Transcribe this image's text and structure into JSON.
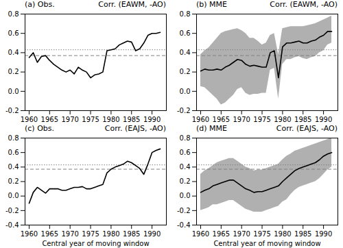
{
  "chart_data": [
    {
      "type": "line",
      "title": "(a) Obs.",
      "subtitle": "Corr. (EAWM, -AO)",
      "x": [
        1960,
        1961,
        1962,
        1963,
        1964,
        1965,
        1966,
        1967,
        1968,
        1969,
        1970,
        1971,
        1972,
        1973,
        1974,
        1975,
        1976,
        1977,
        1978,
        1979,
        1980,
        1981,
        1982,
        1983,
        1984,
        1985,
        1986,
        1987,
        1988,
        1989,
        1990,
        1991,
        1992
      ],
      "series": [
        {
          "type": "line",
          "color": "black",
          "values": [
            0.35,
            0.4,
            0.3,
            0.36,
            0.37,
            0.32,
            0.28,
            0.25,
            0.22,
            0.2,
            0.22,
            0.18,
            0.25,
            0.22,
            0.2,
            0.14,
            0.17,
            0.18,
            0.2,
            0.42,
            0.43,
            0.44,
            0.48,
            0.5,
            0.52,
            0.51,
            0.42,
            0.44,
            0.5,
            0.58,
            0.6,
            0.6,
            0.61
          ]
        }
      ],
      "hlines": [
        {
          "value": 0.37,
          "color": "gray",
          "line_style": "dashed"
        },
        {
          "value": 0.43,
          "color": "gray",
          "line_style": "dotted"
        }
      ],
      "xlim": [
        1959,
        1993.5
      ],
      "xticks": [
        1960,
        1965,
        1970,
        1975,
        1980,
        1985,
        1990
      ],
      "ylim": [
        -0.2,
        0.8
      ],
      "yticks": [
        -0.2,
        {
          "value": 0,
          "label": "0.0"
        },
        0.2,
        0.4,
        0.6,
        0.8
      ]
    },
    {
      "type": "line",
      "title": "(b) MME",
      "subtitle": "Corr. (EAWM, -AO)",
      "x": [
        1960,
        1961,
        1962,
        1963,
        1964,
        1965,
        1966,
        1967,
        1968,
        1969,
        1970,
        1971,
        1972,
        1973,
        1974,
        1975,
        1976,
        1977,
        1978,
        1979,
        1980,
        1981,
        1982,
        1983,
        1984,
        1985,
        1986,
        1987,
        1988,
        1989,
        1990,
        1991,
        1992
      ],
      "series": [
        {
          "type": "area",
          "color": "#b0b0b0",
          "lower": [
            0.05,
            0.04,
            0.0,
            -0.04,
            -0.08,
            -0.14,
            -0.12,
            -0.08,
            -0.04,
            0.02,
            0.04,
            -0.02,
            -0.04,
            -0.03,
            -0.03,
            -0.02,
            -0.02,
            0.22,
            0.24,
            -0.08,
            0.28,
            0.33,
            0.33,
            0.35,
            0.36,
            0.34,
            0.33,
            0.35,
            0.36,
            0.4,
            0.42,
            0.48,
            0.5
          ],
          "upper": [
            0.38,
            0.42,
            0.45,
            0.5,
            0.55,
            0.6,
            0.62,
            0.63,
            0.64,
            0.65,
            0.63,
            0.6,
            0.55,
            0.55,
            0.52,
            0.48,
            0.5,
            0.58,
            0.6,
            0.38,
            0.65,
            0.66,
            0.67,
            0.67,
            0.67,
            0.67,
            0.68,
            0.69,
            0.7,
            0.72,
            0.74,
            0.76,
            0.78
          ]
        },
        {
          "type": "line",
          "color": "black",
          "values": [
            0.21,
            0.23,
            0.22,
            0.22,
            0.23,
            0.22,
            0.25,
            0.27,
            0.3,
            0.33,
            0.32,
            0.28,
            0.26,
            0.27,
            0.26,
            0.25,
            0.25,
            0.4,
            0.42,
            0.14,
            0.46,
            0.5,
            0.5,
            0.51,
            0.52,
            0.5,
            0.5,
            0.52,
            0.53,
            0.56,
            0.58,
            0.62,
            0.62
          ]
        }
      ],
      "hlines": [
        {
          "value": 0.37,
          "color": "gray",
          "line_style": "dashed"
        },
        {
          "value": 0.43,
          "color": "gray",
          "line_style": "dotted"
        }
      ],
      "xlim": [
        1959,
        1993.5
      ],
      "xticks": [
        1960,
        1965,
        1970,
        1975,
        1980,
        1985,
        1990
      ],
      "ylim": [
        -0.2,
        0.8
      ],
      "yticks": [
        -0.2,
        {
          "value": 0,
          "label": "0.0"
        },
        0.2,
        0.4,
        0.6,
        0.8
      ]
    },
    {
      "type": "line",
      "title": "(c) Obs.",
      "subtitle": "Corr. (EAJS, -AO)",
      "xlabel": "Central year of moving window",
      "x": [
        1960,
        1961,
        1962,
        1963,
        1964,
        1965,
        1966,
        1967,
        1968,
        1969,
        1970,
        1971,
        1972,
        1973,
        1974,
        1975,
        1976,
        1977,
        1978,
        1979,
        1980,
        1981,
        1982,
        1983,
        1984,
        1985,
        1986,
        1987,
        1988,
        1989,
        1990,
        1991,
        1992
      ],
      "series": [
        {
          "type": "line",
          "color": "black",
          "values": [
            -0.1,
            0.05,
            0.12,
            0.08,
            0.04,
            0.1,
            0.1,
            0.1,
            0.08,
            0.08,
            0.1,
            0.12,
            0.12,
            0.13,
            0.1,
            0.1,
            0.12,
            0.14,
            0.16,
            0.32,
            0.37,
            0.4,
            0.42,
            0.44,
            0.48,
            0.46,
            0.42,
            0.38,
            0.3,
            0.44,
            0.6,
            0.63,
            0.65
          ]
        }
      ],
      "hlines": [
        {
          "value": 0.37,
          "color": "gray",
          "line_style": "dashed"
        },
        {
          "value": 0.43,
          "color": "gray",
          "line_style": "dotted"
        }
      ],
      "xlim": [
        1959,
        1993.5
      ],
      "xticks": [
        1960,
        1965,
        1970,
        1975,
        1980,
        1985,
        1990
      ],
      "ylim": [
        -0.4,
        0.8
      ],
      "yticks": [
        -0.4,
        -0.2,
        {
          "value": 0,
          "label": "0.0"
        },
        0.2,
        0.4,
        0.6,
        0.8
      ]
    },
    {
      "type": "line",
      "title": "(d) MME",
      "subtitle": "Corr. (EAJS, -AO)",
      "xlabel": "Central year of moving window",
      "x": [
        1960,
        1961,
        1962,
        1963,
        1964,
        1965,
        1966,
        1967,
        1968,
        1969,
        1970,
        1971,
        1972,
        1973,
        1974,
        1975,
        1976,
        1977,
        1978,
        1979,
        1980,
        1981,
        1982,
        1983,
        1984,
        1985,
        1986,
        1987,
        1988,
        1989,
        1990,
        1991,
        1992
      ],
      "series": [
        {
          "type": "area",
          "color": "#b0b0b0",
          "lower": [
            -0.2,
            -0.18,
            -0.16,
            -0.12,
            -0.12,
            -0.1,
            -0.08,
            -0.06,
            -0.06,
            -0.1,
            -0.14,
            -0.18,
            -0.2,
            -0.22,
            -0.22,
            -0.22,
            -0.2,
            -0.18,
            -0.16,
            -0.14,
            -0.08,
            -0.05,
            0.02,
            0.08,
            0.12,
            0.14,
            0.16,
            0.18,
            0.2,
            0.24,
            0.3,
            0.36,
            0.4
          ],
          "upper": [
            0.3,
            0.35,
            0.38,
            0.42,
            0.46,
            0.48,
            0.5,
            0.52,
            0.52,
            0.48,
            0.44,
            0.4,
            0.38,
            0.35,
            0.36,
            0.36,
            0.38,
            0.4,
            0.42,
            0.44,
            0.5,
            0.55,
            0.58,
            0.62,
            0.64,
            0.66,
            0.68,
            0.7,
            0.72,
            0.74,
            0.76,
            0.78,
            0.8
          ]
        },
        {
          "type": "line",
          "color": "black",
          "values": [
            0.05,
            0.08,
            0.1,
            0.14,
            0.16,
            0.18,
            0.2,
            0.22,
            0.22,
            0.18,
            0.14,
            0.1,
            0.08,
            0.05,
            0.06,
            0.06,
            0.08,
            0.1,
            0.12,
            0.14,
            0.2,
            0.25,
            0.3,
            0.35,
            0.38,
            0.4,
            0.42,
            0.44,
            0.46,
            0.5,
            0.55,
            0.58,
            0.6
          ]
        }
      ],
      "hlines": [
        {
          "value": 0.37,
          "color": "gray",
          "line_style": "dashed"
        },
        {
          "value": 0.43,
          "color": "gray",
          "line_style": "dotted"
        }
      ],
      "xlim": [
        1959,
        1993.5
      ],
      "xticks": [
        1960,
        1965,
        1970,
        1975,
        1980,
        1985,
        1990
      ],
      "ylim": [
        -0.4,
        0.8
      ],
      "yticks": [
        -0.4,
        -0.2,
        {
          "value": 0,
          "label": "0.0"
        },
        0.2,
        0.4,
        0.6,
        0.8
      ]
    }
  ]
}
